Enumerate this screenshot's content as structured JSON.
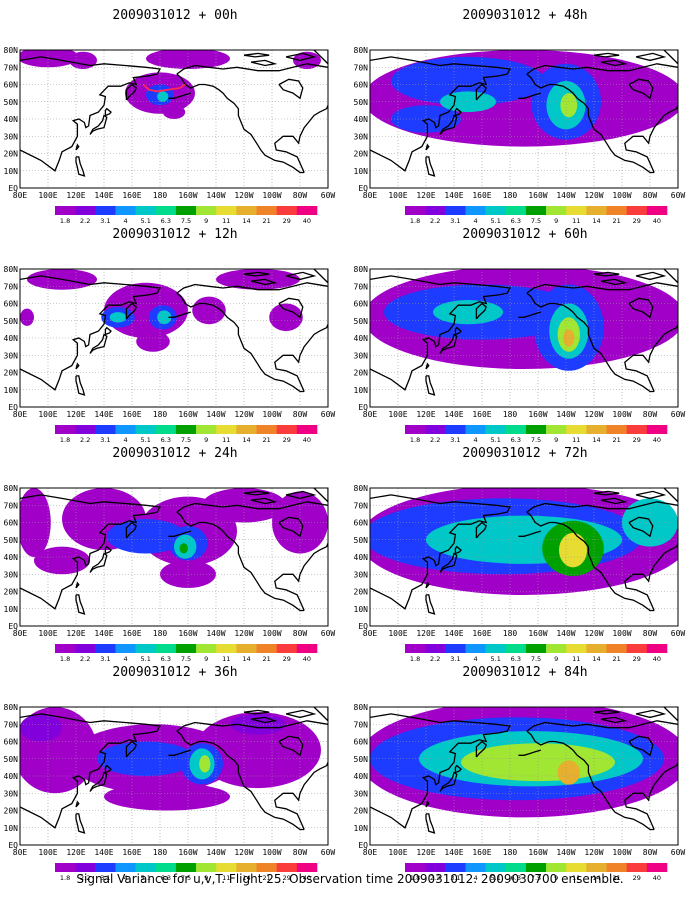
{
  "domain_note_ignore": "",
  "colors": {
    "scale": [
      "#a000c8",
      "#8200dc",
      "#1e3cff",
      "#0f96ff",
      "#00c8c8",
      "#00dc8c",
      "#00a000",
      "#a0e632",
      "#e6dc32",
      "#e6af2d",
      "#f08228",
      "#fa3c3c",
      "#f00082"
    ],
    "land_stroke": "#000000",
    "grid_stroke": "#9a9a9a",
    "annotation_red": "#ff2a55"
  },
  "colorbar_labels": [
    "1.8",
    "2.2",
    "3.1",
    "4",
    "5.1",
    "6.3",
    "7.5",
    "9",
    "11",
    "14",
    "21",
    "29",
    "40"
  ],
  "lon_labels": [
    "80E",
    "100E",
    "120E",
    "140E",
    "160E",
    "180",
    "160W",
    "140W",
    "120W",
    "100W",
    "80W",
    "60W"
  ],
  "lat_labels": [
    "80N",
    "70N",
    "60N",
    "50N",
    "40N",
    "30N",
    "20N",
    "10N",
    "EQ"
  ],
  "panels": [
    {
      "title": "2009031012 + 00h",
      "intensity": 0
    },
    {
      "title": "2009031012 + 12h",
      "intensity": 1
    },
    {
      "title": "2009031012 + 24h",
      "intensity": 2
    },
    {
      "title": "2009031012 + 36h",
      "intensity": 3
    },
    {
      "title": "2009031012 + 48h",
      "intensity": 4
    },
    {
      "title": "2009031012 + 60h",
      "intensity": 5
    },
    {
      "title": "2009031012 + 72h",
      "intensity": 6
    },
    {
      "title": "2009031012 + 84h",
      "intensity": 7
    }
  ],
  "footer": "Signal Variance for u,v,T. Flight 25. Observation time 2009031012. 2009030700 ensemble."
}
